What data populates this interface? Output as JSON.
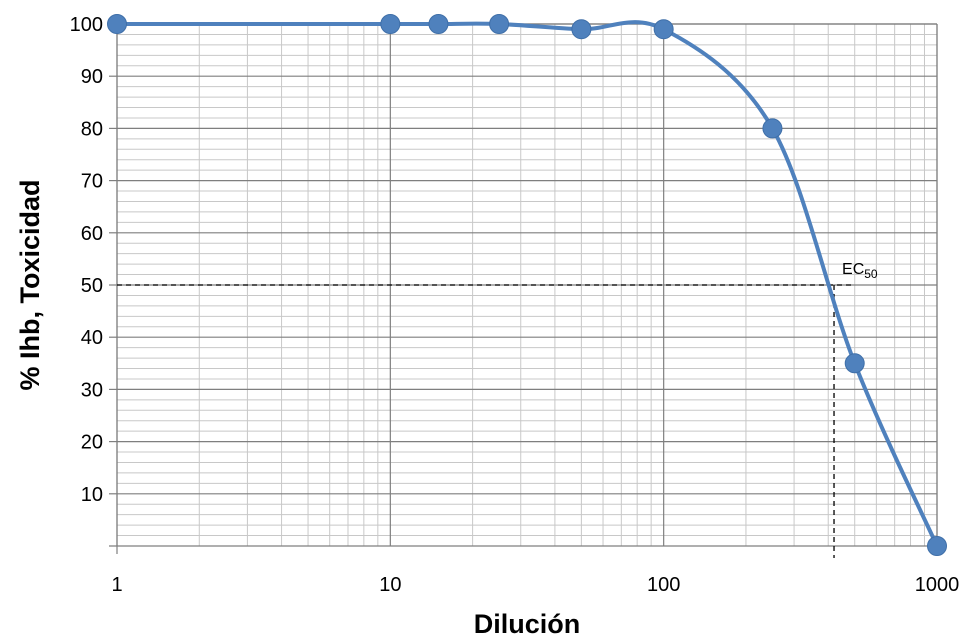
{
  "chart_data": {
    "type": "line",
    "title": "",
    "xlabel": "Dilución",
    "ylabel": "% Ihb, Toxicidad",
    "x_scale": "log",
    "xlim": [
      1,
      1000
    ],
    "ylim": [
      0,
      100
    ],
    "x_ticks": [
      "1",
      "10",
      "100",
      "1000"
    ],
    "y_ticks": [
      "10",
      "20",
      "30",
      "40",
      "50",
      "60",
      "70",
      "80",
      "90",
      "100"
    ],
    "grid": true,
    "legend": "none",
    "series": [
      {
        "color": "#4f81bd",
        "x": [
          1,
          10,
          15,
          25,
          50,
          100,
          250,
          500,
          1000
        ],
        "y": [
          100,
          100,
          100,
          100,
          99,
          99,
          80,
          35,
          0
        ]
      }
    ],
    "annotation": {
      "label": "EC",
      "label_sub": "50",
      "x": 420,
      "y": 50
    }
  }
}
